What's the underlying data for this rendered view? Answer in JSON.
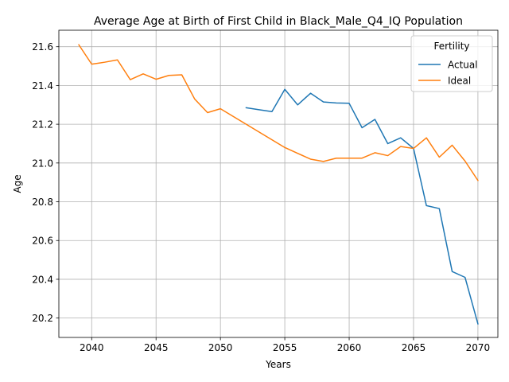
{
  "chart_data": {
    "type": "line",
    "title": "Average Age at Birth of First Child in Black_Male_Q4_IQ Population",
    "xlabel": "Years",
    "ylabel": "Age",
    "xlim": [
      2037.45,
      2071.55
    ],
    "ylim": [
      20.1,
      21.685
    ],
    "x_ticks": [
      2040,
      2045,
      2050,
      2055,
      2060,
      2065,
      2070
    ],
    "y_ticks": [
      20.2,
      20.4,
      20.6,
      20.8,
      21.0,
      21.2,
      21.4,
      21.6
    ],
    "x_tick_labels": [
      "2040",
      "2045",
      "2050",
      "2055",
      "2060",
      "2065",
      "2070"
    ],
    "y_tick_labels": [
      "20.2",
      "20.4",
      "20.6",
      "20.8",
      "21.0",
      "21.2",
      "21.4",
      "21.6"
    ],
    "grid": true,
    "legend": {
      "title": "Fertility",
      "position": "top-right"
    },
    "series": [
      {
        "name": "Actual",
        "color": "#1f77b4",
        "x": [
          2052,
          2053,
          2054,
          2055,
          2056,
          2057,
          2058,
          2059,
          2060,
          2061,
          2062,
          2063,
          2064,
          2065,
          2066,
          2067,
          2068,
          2069,
          2070
        ],
        "values": [
          21.285,
          21.275,
          21.265,
          21.38,
          21.3,
          21.36,
          21.315,
          21.31,
          21.308,
          21.182,
          21.225,
          21.1,
          21.13,
          21.075,
          20.78,
          20.765,
          20.44,
          20.41,
          20.17
        ]
      },
      {
        "name": "Ideal",
        "color": "#ff7f0e",
        "x": [
          2039,
          2040,
          2041,
          2042,
          2043,
          2044,
          2045,
          2046,
          2047,
          2048,
          2049,
          2050,
          2051,
          2052,
          2053,
          2054,
          2055,
          2056,
          2057,
          2058,
          2059,
          2060,
          2061,
          2062,
          2063,
          2064,
          2065,
          2066,
          2067,
          2068,
          2069,
          2070
        ],
        "values": [
          21.61,
          21.51,
          21.52,
          21.532,
          21.43,
          21.46,
          21.432,
          21.452,
          21.455,
          21.33,
          21.26,
          21.28,
          21.24,
          21.2,
          21.16,
          21.12,
          21.08,
          21.05,
          21.02,
          21.008,
          21.025,
          21.025,
          21.025,
          21.053,
          21.038,
          21.085,
          21.075,
          21.13,
          21.03,
          21.092,
          21.01,
          20.91
        ]
      }
    ]
  }
}
